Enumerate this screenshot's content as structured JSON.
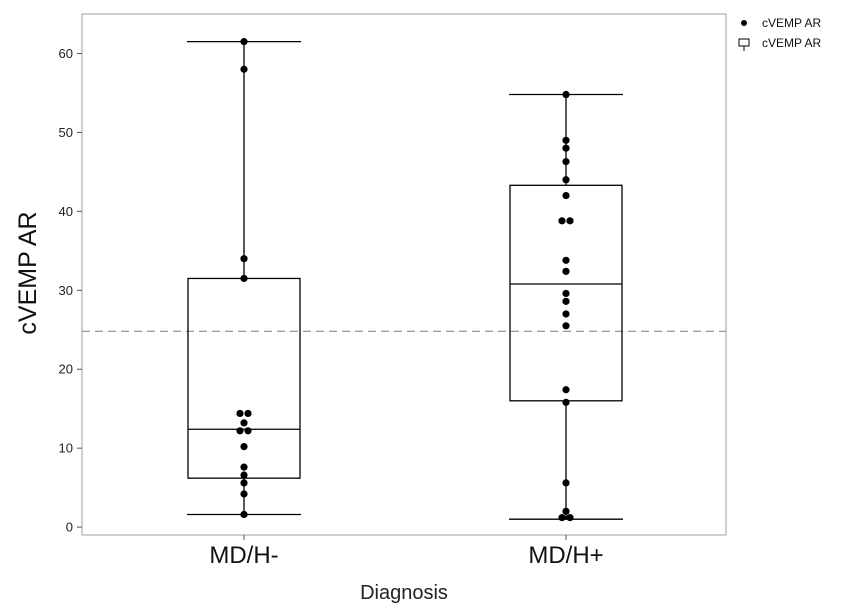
{
  "chart_data": {
    "type": "box",
    "title": "",
    "xlabel": "Diagnosis",
    "ylabel": "cVEMP AR",
    "ylim": [
      -1,
      65
    ],
    "yticks": [
      0,
      10,
      20,
      30,
      40,
      50,
      60
    ],
    "categories": [
      "MD/H-",
      "MD/H+"
    ],
    "reference_line": {
      "y": 24.8,
      "style": "dashed",
      "color": "#8c8c8c"
    },
    "boxes": [
      {
        "category": "MD/H-",
        "whisker_low": 1.6,
        "q1": 6.2,
        "median": 12.4,
        "q3": 31.5,
        "whisker_high": 61.5
      },
      {
        "category": "MD/H+",
        "whisker_low": 1.0,
        "q1": 16.0,
        "median": 30.8,
        "q3": 43.3,
        "whisker_high": 54.8
      }
    ],
    "points": [
      {
        "category": "MD/H-",
        "values": [
          61.5,
          58.0,
          34.0,
          31.5,
          14.4,
          14.4,
          13.2,
          12.2,
          12.2,
          10.2,
          7.6,
          6.6,
          5.6,
          4.2,
          1.6
        ]
      },
      {
        "category": "MD/H+",
        "values": [
          54.8,
          49.0,
          48.0,
          46.3,
          44.0,
          42.0,
          38.8,
          38.8,
          33.8,
          32.4,
          29.6,
          28.6,
          27.0,
          25.5,
          17.4,
          15.8,
          5.6,
          2.0,
          1.2,
          1.2
        ]
      }
    ],
    "legend": {
      "position": "top-right",
      "entries": [
        {
          "label": "cVEMP AR",
          "marker": "dot"
        },
        {
          "label": "cVEMP AR",
          "marker": "box"
        }
      ]
    },
    "grid": false,
    "colors": {
      "points": "#000000",
      "box": "#000000",
      "frame": "#a0a0a0",
      "refline": "#8c8c8c"
    }
  }
}
